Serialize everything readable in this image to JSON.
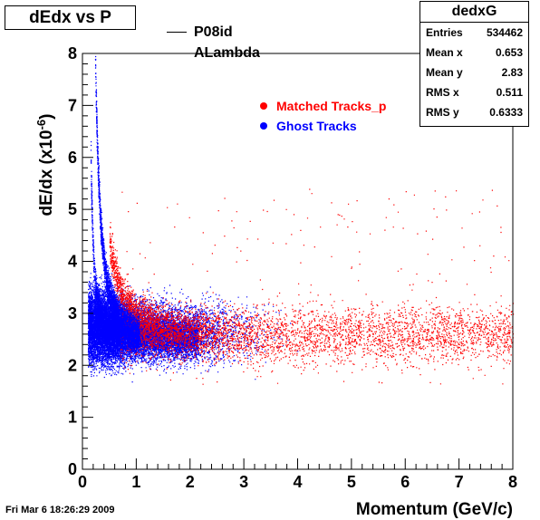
{
  "title": "dEdx vs P",
  "stats": {
    "name": "dedxG",
    "rows": [
      {
        "label": "Entries",
        "value": "534462"
      },
      {
        "label": "Mean x",
        "value": "0.653"
      },
      {
        "label": "Mean y",
        "value": "2.83"
      },
      {
        "label": "RMS x",
        "value": "0.511"
      },
      {
        "label": "RMS y",
        "value": "0.6333"
      }
    ]
  },
  "particle_label": {
    "line1": "P08id",
    "line2": "ALambda"
  },
  "footer": "Fri Mar  6 18:26:29 2009",
  "colors": {
    "matched": "#ff0000",
    "ghost": "#0000ff",
    "axis": "#000000"
  },
  "chart_data": {
    "type": "scatter",
    "xlabel": "Momentum  (GeV/c)",
    "ylabel_main": "dE/dx (x10",
    "ylabel_sup": "-6",
    "ylabel_close": ")",
    "xlim": [
      0,
      8
    ],
    "ylim": [
      0,
      8
    ],
    "x_ticks": [
      "0",
      "1",
      "2",
      "3",
      "4",
      "5",
      "6",
      "7",
      "8"
    ],
    "y_ticks": [
      "0",
      "1",
      "2",
      "3",
      "4",
      "5",
      "6",
      "7",
      "8"
    ],
    "grid": false,
    "legend_position": "top-center",
    "series": [
      {
        "name": "Matched Tracks_p",
        "color": "#ff0000",
        "points_density": [
          {
            "x_range": [
              0.5,
              8.0
            ],
            "y_center": 2.6,
            "y_spread": 0.35,
            "weight": 0.5
          },
          {
            "x_range": [
              0.6,
              2.0
            ],
            "y_center": 3.2,
            "y_spread": 0.8,
            "weight": 0.3
          }
        ]
      },
      {
        "name": "Ghost Tracks",
        "color": "#0000ff",
        "points_density": [
          {
            "x_range": [
              0.1,
              0.5
            ],
            "y_center": 2.8,
            "y_spread": 0.6,
            "weight": 0.35
          },
          {
            "x_range": [
              0.5,
              3.5
            ],
            "y_center": 2.7,
            "y_spread": 0.35,
            "weight": 0.35
          },
          {
            "x_range": [
              0.2,
              2.5
            ],
            "y_center": "band",
            "y_spread": 0.3,
            "weight": 0.3
          }
        ]
      }
    ]
  }
}
